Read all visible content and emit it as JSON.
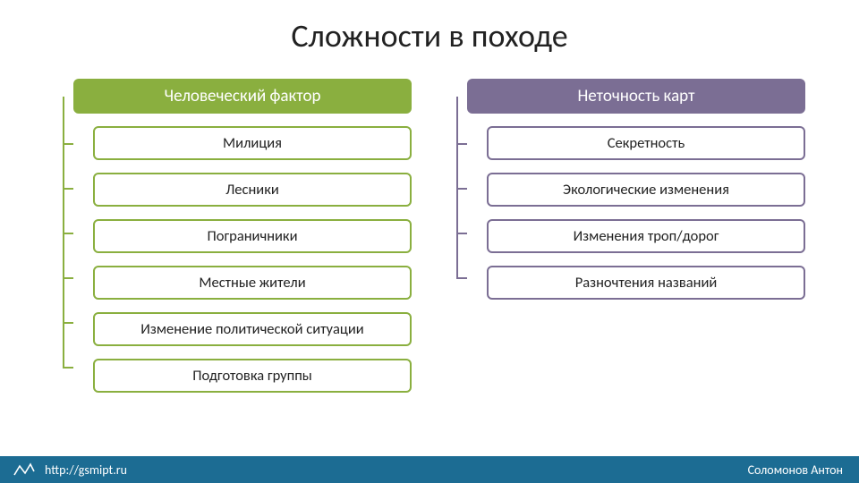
{
  "title": "Сложности в походе",
  "columns": [
    {
      "header": "Человеческий фактор",
      "header_bg": "#8aaf3f",
      "item_border": "#8aaf3f",
      "line_color": "#8aaf3f",
      "items": [
        "Милиция",
        "Лесники",
        "Пограничники",
        "Местные жители",
        "Изменение политической ситуации",
        "Подготовка группы"
      ]
    },
    {
      "header": "Неточность карт",
      "header_bg": "#7b6e94",
      "item_border": "#7b6e94",
      "line_color": "#7b6e94",
      "items": [
        "Секретность",
        "Экологические изменения",
        "Изменения троп/дорог",
        "Разночтения названий"
      ]
    }
  ],
  "footer": {
    "bg": "#1c6c93",
    "url": "http://gsmipt.ru",
    "author": "Соломонов Антон"
  },
  "layout": {
    "item_spacing": 14,
    "item_height_est": 36,
    "header_height_est": 40,
    "title_fontsize": 36,
    "header_fontsize": 19,
    "item_fontsize": 16.5,
    "footer_fontsize": 14
  }
}
